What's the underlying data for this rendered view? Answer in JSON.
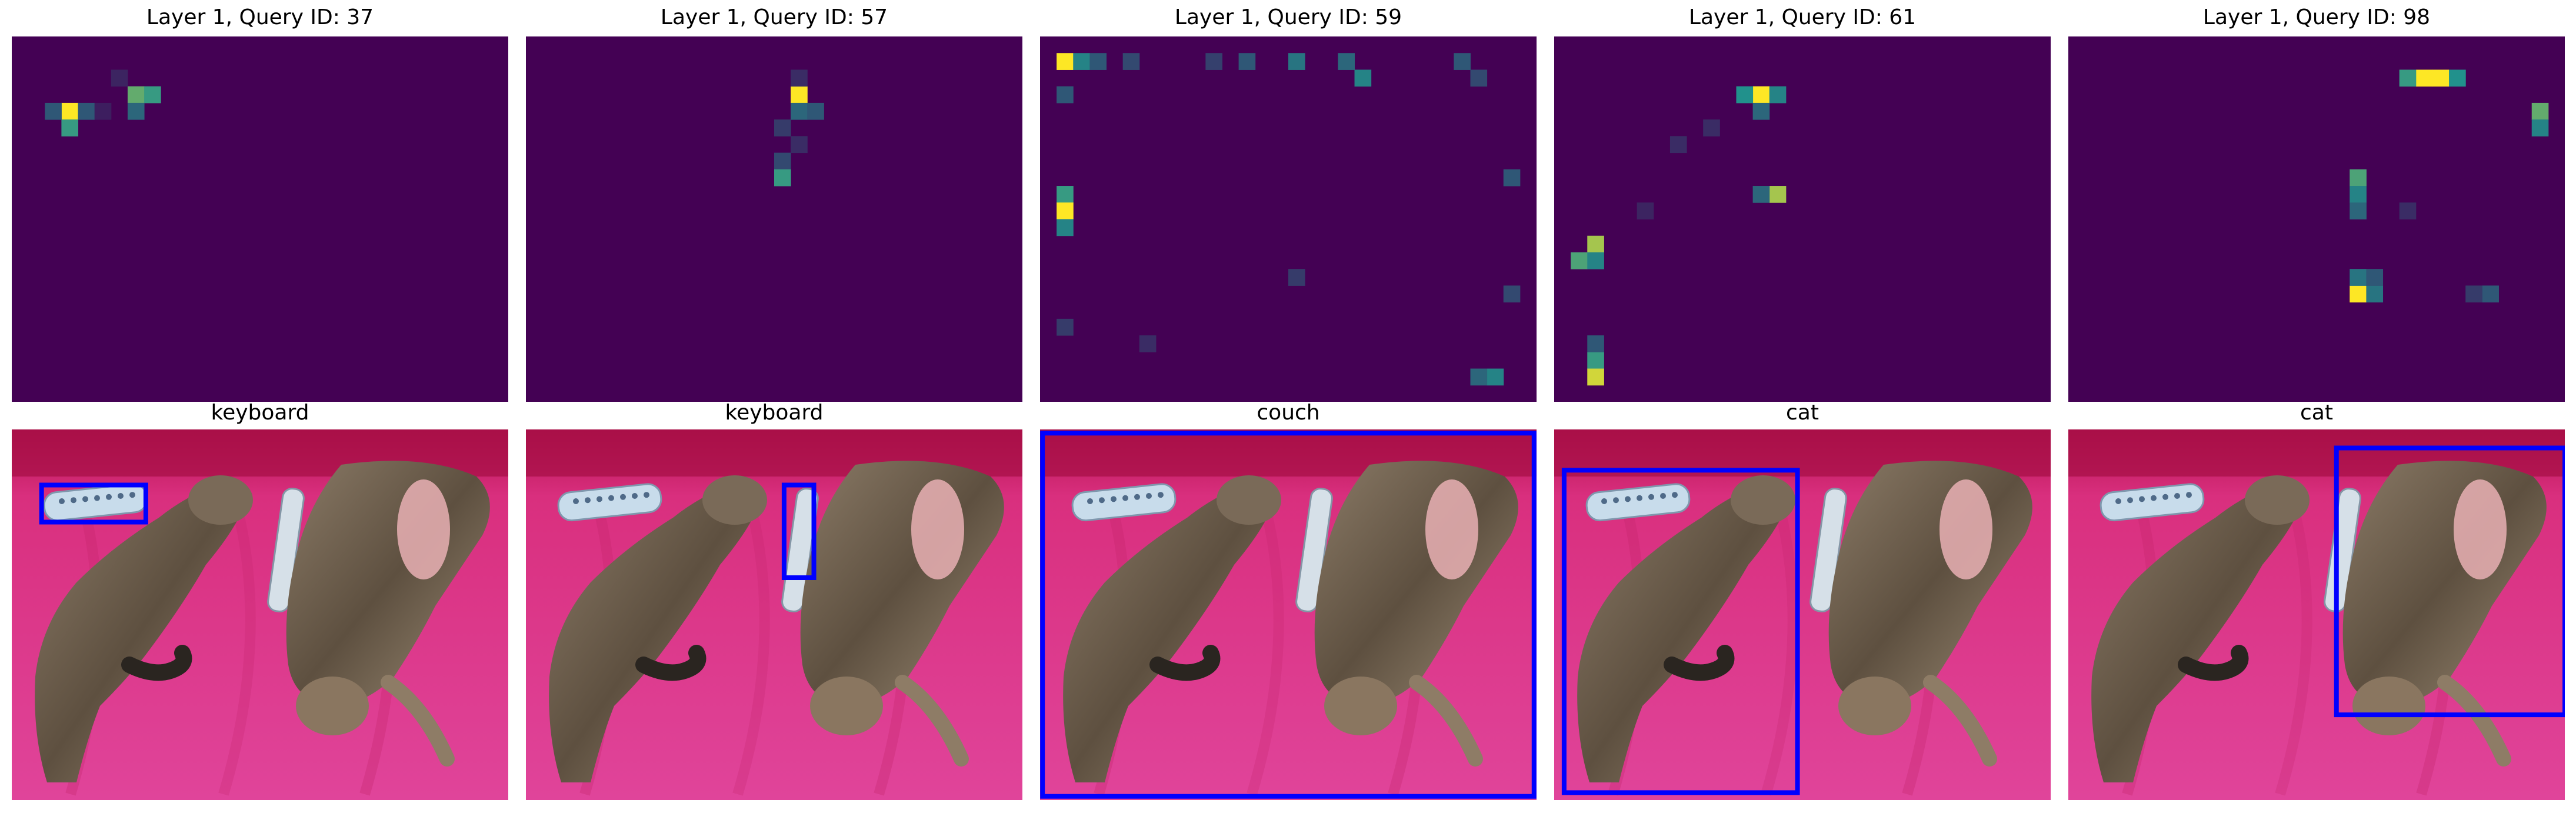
{
  "colors": {
    "heatmap_low": "#440154",
    "heatmap_mid": "#21918c",
    "heatmap_high": "#fde725",
    "box_color": "#0000ff"
  },
  "chart_data": [
    {
      "type": "heatmap",
      "title": "Layer 1, Query ID: 37",
      "grid": {
        "cols": 30,
        "rows": 22
      },
      "hotspots": [
        {
          "col": 3,
          "row": 4,
          "value": 1.0
        },
        {
          "col": 3,
          "row": 5,
          "value": 0.55
        },
        {
          "col": 7,
          "row": 3,
          "value": 0.65
        },
        {
          "col": 8,
          "row": 3,
          "value": 0.55
        },
        {
          "col": 7,
          "row": 4,
          "value": 0.35
        },
        {
          "col": 2,
          "row": 4,
          "value": 0.3
        },
        {
          "col": 4,
          "row": 4,
          "value": 0.3
        },
        {
          "col": 6,
          "row": 2,
          "value": 0.12
        },
        {
          "col": 5,
          "row": 4,
          "value": 0.1
        }
      ]
    },
    {
      "type": "heatmap",
      "title": "Layer 1, Query ID: 57",
      "grid": {
        "cols": 30,
        "rows": 22
      },
      "hotspots": [
        {
          "col": 16,
          "row": 3,
          "value": 1.0
        },
        {
          "col": 16,
          "row": 4,
          "value": 0.35
        },
        {
          "col": 17,
          "row": 4,
          "value": 0.3
        },
        {
          "col": 15,
          "row": 5,
          "value": 0.2
        },
        {
          "col": 15,
          "row": 7,
          "value": 0.25
        },
        {
          "col": 15,
          "row": 8,
          "value": 0.55
        },
        {
          "col": 16,
          "row": 6,
          "value": 0.15
        },
        {
          "col": 16,
          "row": 2,
          "value": 0.15
        }
      ]
    },
    {
      "type": "heatmap",
      "title": "Layer 1, Query ID: 59",
      "grid": {
        "cols": 30,
        "rows": 22
      },
      "hotspots": [
        {
          "col": 1,
          "row": 1,
          "value": 1.0
        },
        {
          "col": 2,
          "row": 1,
          "value": 0.45
        },
        {
          "col": 3,
          "row": 1,
          "value": 0.3
        },
        {
          "col": 5,
          "row": 1,
          "value": 0.25
        },
        {
          "col": 10,
          "row": 1,
          "value": 0.22
        },
        {
          "col": 12,
          "row": 1,
          "value": 0.3
        },
        {
          "col": 15,
          "row": 1,
          "value": 0.4
        },
        {
          "col": 18,
          "row": 1,
          "value": 0.35
        },
        {
          "col": 19,
          "row": 2,
          "value": 0.45
        },
        {
          "col": 25,
          "row": 1,
          "value": 0.3
        },
        {
          "col": 26,
          "row": 2,
          "value": 0.25
        },
        {
          "col": 1,
          "row": 9,
          "value": 0.55
        },
        {
          "col": 1,
          "row": 10,
          "value": 1.0
        },
        {
          "col": 1,
          "row": 11,
          "value": 0.45
        },
        {
          "col": 1,
          "row": 3,
          "value": 0.3
        },
        {
          "col": 1,
          "row": 17,
          "value": 0.2
        },
        {
          "col": 28,
          "row": 8,
          "value": 0.3
        },
        {
          "col": 28,
          "row": 15,
          "value": 0.25
        },
        {
          "col": 27,
          "row": 20,
          "value": 0.45
        },
        {
          "col": 26,
          "row": 20,
          "value": 0.35
        },
        {
          "col": 15,
          "row": 14,
          "value": 0.2
        },
        {
          "col": 6,
          "row": 18,
          "value": 0.15
        }
      ]
    },
    {
      "type": "heatmap",
      "title": "Layer 1, Query ID: 61",
      "grid": {
        "cols": 30,
        "rows": 22
      },
      "hotspots": [
        {
          "col": 12,
          "row": 3,
          "value": 1.0
        },
        {
          "col": 11,
          "row": 3,
          "value": 0.5
        },
        {
          "col": 13,
          "row": 3,
          "value": 0.45
        },
        {
          "col": 12,
          "row": 4,
          "value": 0.35
        },
        {
          "col": 13,
          "row": 9,
          "value": 0.8
        },
        {
          "col": 12,
          "row": 9,
          "value": 0.35
        },
        {
          "col": 2,
          "row": 12,
          "value": 0.8
        },
        {
          "col": 1,
          "row": 13,
          "value": 0.6
        },
        {
          "col": 2,
          "row": 13,
          "value": 0.45
        },
        {
          "col": 2,
          "row": 19,
          "value": 0.55
        },
        {
          "col": 2,
          "row": 20,
          "value": 0.9
        },
        {
          "col": 2,
          "row": 18,
          "value": 0.3
        },
        {
          "col": 7,
          "row": 6,
          "value": 0.15
        },
        {
          "col": 5,
          "row": 10,
          "value": 0.12
        },
        {
          "col": 9,
          "row": 5,
          "value": 0.15
        }
      ]
    },
    {
      "type": "heatmap",
      "title": "Layer 1, Query ID: 98",
      "grid": {
        "cols": 30,
        "rows": 22
      },
      "hotspots": [
        {
          "col": 21,
          "row": 2,
          "value": 1.0
        },
        {
          "col": 22,
          "row": 2,
          "value": 1.0
        },
        {
          "col": 20,
          "row": 2,
          "value": 0.55
        },
        {
          "col": 23,
          "row": 2,
          "value": 0.5
        },
        {
          "col": 28,
          "row": 4,
          "value": 0.65
        },
        {
          "col": 28,
          "row": 5,
          "value": 0.45
        },
        {
          "col": 17,
          "row": 8,
          "value": 0.6
        },
        {
          "col": 17,
          "row": 9,
          "value": 0.45
        },
        {
          "col": 17,
          "row": 10,
          "value": 0.35
        },
        {
          "col": 17,
          "row": 15,
          "value": 1.0
        },
        {
          "col": 17,
          "row": 14,
          "value": 0.4
        },
        {
          "col": 18,
          "row": 15,
          "value": 0.4
        },
        {
          "col": 18,
          "row": 14,
          "value": 0.3
        },
        {
          "col": 25,
          "row": 15,
          "value": 0.3
        },
        {
          "col": 24,
          "row": 15,
          "value": 0.2
        },
        {
          "col": 20,
          "row": 10,
          "value": 0.15
        }
      ]
    },
    {
      "type": "image-detection",
      "title": "keyboard",
      "box": {
        "x0": 0.06,
        "y0": 0.15,
        "x1": 0.27,
        "y1": 0.25
      }
    },
    {
      "type": "image-detection",
      "title": "keyboard",
      "box": {
        "x0": 0.52,
        "y0": 0.15,
        "x1": 0.58,
        "y1": 0.4
      }
    },
    {
      "type": "image-detection",
      "title": "couch",
      "box": {
        "x0": 0.005,
        "y0": 0.01,
        "x1": 0.995,
        "y1": 0.99
      }
    },
    {
      "type": "image-detection",
      "title": "cat",
      "box": {
        "x0": 0.02,
        "y0": 0.11,
        "x1": 0.49,
        "y1": 0.98
      }
    },
    {
      "type": "image-detection",
      "title": "cat",
      "box": {
        "x0": 0.54,
        "y0": 0.05,
        "x1": 1.0,
        "y1": 0.77
      }
    }
  ]
}
